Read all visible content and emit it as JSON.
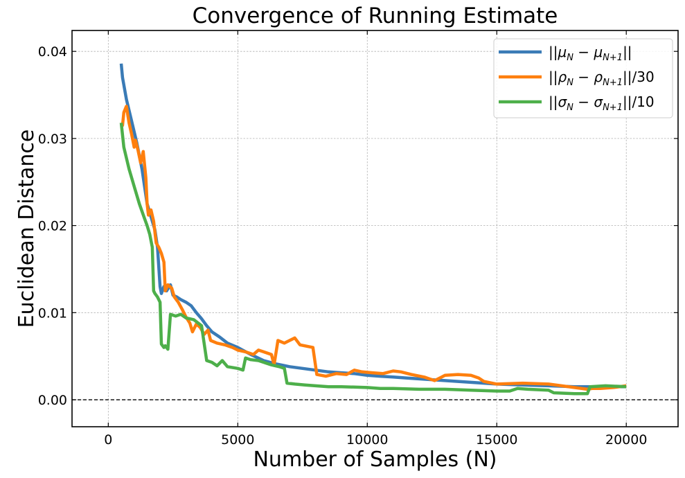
{
  "chart_data": {
    "type": "line",
    "title": "Convergence of Running Estimate",
    "xlabel": "Number of Samples (N)",
    "ylabel": "Euclidean Distance",
    "xlim": [
      -1400,
      22000
    ],
    "ylim": [
      -0.0031,
      0.0424
    ],
    "xticks": [
      0,
      5000,
      10000,
      15000,
      20000
    ],
    "xtick_labels": [
      "0",
      "5000",
      "10000",
      "15000",
      "20000"
    ],
    "yticks": [
      0.0,
      0.01,
      0.02,
      0.03,
      0.04
    ],
    "ytick_labels": [
      "0.00",
      "0.01",
      "0.02",
      "0.03",
      "0.04"
    ],
    "grid": true,
    "reference_line": {
      "y": 0.0,
      "style": "dashed",
      "color": "#000000"
    },
    "legend_position": "top-right",
    "series": [
      {
        "name": "||μN − μN+1||",
        "legend": {
          "pre": "||",
          "a": "μ",
          "asub": "N",
          "mid": " − ",
          "b": "μ",
          "bsub": "N+1",
          "post": "||"
        },
        "color": "#3a7bb6",
        "points": [
          [
            500,
            0.0386
          ],
          [
            550,
            0.037
          ],
          [
            700,
            0.0345
          ],
          [
            900,
            0.032
          ],
          [
            1100,
            0.0295
          ],
          [
            1300,
            0.0265
          ],
          [
            1500,
            0.0225
          ],
          [
            1600,
            0.0215
          ],
          [
            1700,
            0.0205
          ],
          [
            1800,
            0.0195
          ],
          [
            1900,
            0.0175
          ],
          [
            2000,
            0.013
          ],
          [
            2050,
            0.0122
          ],
          [
            2150,
            0.013
          ],
          [
            2250,
            0.0125
          ],
          [
            2400,
            0.0132
          ],
          [
            2500,
            0.012
          ],
          [
            2650,
            0.0118
          ],
          [
            2800,
            0.0115
          ],
          [
            3000,
            0.0112
          ],
          [
            3200,
            0.0108
          ],
          [
            3400,
            0.01
          ],
          [
            3600,
            0.0093
          ],
          [
            3800,
            0.0085
          ],
          [
            4000,
            0.0078
          ],
          [
            4300,
            0.0072
          ],
          [
            4600,
            0.0065
          ],
          [
            5000,
            0.006
          ],
          [
            5500,
            0.0052
          ],
          [
            6000,
            0.0045
          ],
          [
            6500,
            0.0041
          ],
          [
            7000,
            0.0038
          ],
          [
            7500,
            0.0036
          ],
          [
            8000,
            0.0034
          ],
          [
            8500,
            0.0032
          ],
          [
            9000,
            0.0031
          ],
          [
            9500,
            0.003
          ],
          [
            10000,
            0.0028
          ],
          [
            10500,
            0.0027
          ],
          [
            11000,
            0.0026
          ],
          [
            11500,
            0.0025
          ],
          [
            12000,
            0.0024
          ],
          [
            12500,
            0.0023
          ],
          [
            13000,
            0.0022
          ],
          [
            13500,
            0.0021
          ],
          [
            14000,
            0.002
          ],
          [
            14500,
            0.0019
          ],
          [
            15000,
            0.0018
          ],
          [
            16000,
            0.0017
          ],
          [
            17000,
            0.0016
          ],
          [
            18000,
            0.0015
          ],
          [
            19000,
            0.0015
          ],
          [
            20000,
            0.0015
          ]
        ]
      },
      {
        "name": "||ρN − ρN+1||/30",
        "legend": {
          "pre": "||",
          "a": "ρ",
          "asub": "N",
          "mid": " − ",
          "b": "ρ",
          "bsub": "N+1",
          "post": "||/30"
        },
        "color": "#fe7f0e",
        "points": [
          [
            500,
            0.0318
          ],
          [
            550,
            0.0315
          ],
          [
            600,
            0.033
          ],
          [
            700,
            0.0337
          ],
          [
            800,
            0.0318
          ],
          [
            900,
            0.0305
          ],
          [
            1000,
            0.029
          ],
          [
            1050,
            0.0298
          ],
          [
            1150,
            0.0286
          ],
          [
            1250,
            0.0272
          ],
          [
            1350,
            0.0285
          ],
          [
            1450,
            0.0255
          ],
          [
            1500,
            0.0225
          ],
          [
            1550,
            0.0212
          ],
          [
            1650,
            0.0218
          ],
          [
            1750,
            0.0205
          ],
          [
            1850,
            0.018
          ],
          [
            1950,
            0.0175
          ],
          [
            2050,
            0.0168
          ],
          [
            2150,
            0.0158
          ],
          [
            2200,
            0.0125
          ],
          [
            2300,
            0.0132
          ],
          [
            2450,
            0.0128
          ],
          [
            2550,
            0.0118
          ],
          [
            2700,
            0.0112
          ],
          [
            2850,
            0.0104
          ],
          [
            3000,
            0.0095
          ],
          [
            3150,
            0.0088
          ],
          [
            3250,
            0.0078
          ],
          [
            3400,
            0.0087
          ],
          [
            3550,
            0.0083
          ],
          [
            3700,
            0.0075
          ],
          [
            3850,
            0.008
          ],
          [
            3950,
            0.0068
          ],
          [
            4200,
            0.0065
          ],
          [
            4500,
            0.0063
          ],
          [
            4800,
            0.006
          ],
          [
            5000,
            0.0057
          ],
          [
            5300,
            0.0055
          ],
          [
            5600,
            0.0052
          ],
          [
            5800,
            0.0057
          ],
          [
            6000,
            0.0055
          ],
          [
            6300,
            0.0052
          ],
          [
            6400,
            0.004
          ],
          [
            6550,
            0.0068
          ],
          [
            6800,
            0.0065
          ],
          [
            7000,
            0.0068
          ],
          [
            7200,
            0.0071
          ],
          [
            7400,
            0.0063
          ],
          [
            7900,
            0.006
          ],
          [
            8050,
            0.0029
          ],
          [
            8400,
            0.0027
          ],
          [
            8800,
            0.003
          ],
          [
            9200,
            0.0029
          ],
          [
            9500,
            0.0034
          ],
          [
            9800,
            0.0032
          ],
          [
            10200,
            0.0031
          ],
          [
            10600,
            0.003
          ],
          [
            11000,
            0.0033
          ],
          [
            11300,
            0.0032
          ],
          [
            11700,
            0.0029
          ],
          [
            12200,
            0.0026
          ],
          [
            12400,
            0.0024
          ],
          [
            12600,
            0.0022
          ],
          [
            13000,
            0.0028
          ],
          [
            13500,
            0.0029
          ],
          [
            14000,
            0.0028
          ],
          [
            14300,
            0.0025
          ],
          [
            14500,
            0.0021
          ],
          [
            15000,
            0.0018
          ],
          [
            16000,
            0.0019
          ],
          [
            17000,
            0.0018
          ],
          [
            17500,
            0.0016
          ],
          [
            18000,
            0.0014
          ],
          [
            18500,
            0.0012
          ],
          [
            18700,
            0.0013
          ],
          [
            19000,
            0.0013
          ],
          [
            19500,
            0.0014
          ],
          [
            20000,
            0.0016
          ]
        ]
      },
      {
        "name": "||σN − σN+1||/10",
        "legend": {
          "pre": "||",
          "a": "σ",
          "asub": "N",
          "mid": " − ",
          "b": "σ",
          "bsub": "N+1",
          "post": "||/10"
        },
        "color": "#4daf4a",
        "points": [
          [
            500,
            0.0318
          ],
          [
            600,
            0.029
          ],
          [
            800,
            0.0265
          ],
          [
            1000,
            0.0245
          ],
          [
            1200,
            0.0225
          ],
          [
            1400,
            0.0208
          ],
          [
            1500,
            0.02
          ],
          [
            1600,
            0.019
          ],
          [
            1700,
            0.0175
          ],
          [
            1750,
            0.0125
          ],
          [
            1800,
            0.0122
          ],
          [
            1900,
            0.0118
          ],
          [
            2000,
            0.0112
          ],
          [
            2050,
            0.0064
          ],
          [
            2150,
            0.006
          ],
          [
            2200,
            0.0062
          ],
          [
            2300,
            0.0058
          ],
          [
            2400,
            0.0098
          ],
          [
            2600,
            0.0096
          ],
          [
            2800,
            0.0098
          ],
          [
            3000,
            0.0094
          ],
          [
            3300,
            0.0092
          ],
          [
            3600,
            0.0085
          ],
          [
            3800,
            0.0045
          ],
          [
            4000,
            0.0043
          ],
          [
            4200,
            0.0039
          ],
          [
            4400,
            0.0045
          ],
          [
            4600,
            0.0038
          ],
          [
            5000,
            0.0036
          ],
          [
            5200,
            0.0034
          ],
          [
            5300,
            0.0048
          ],
          [
            5500,
            0.0046
          ],
          [
            5800,
            0.0045
          ],
          [
            6000,
            0.0043
          ],
          [
            6300,
            0.004
          ],
          [
            6600,
            0.0038
          ],
          [
            6800,
            0.0036
          ],
          [
            6900,
            0.0019
          ],
          [
            7200,
            0.0018
          ],
          [
            7600,
            0.0017
          ],
          [
            8000,
            0.0016
          ],
          [
            8500,
            0.0015
          ],
          [
            9000,
            0.0015
          ],
          [
            10000,
            0.0014
          ],
          [
            10500,
            0.0013
          ],
          [
            11000,
            0.0013
          ],
          [
            12000,
            0.0012
          ],
          [
            13000,
            0.0012
          ],
          [
            14000,
            0.0011
          ],
          [
            15000,
            0.001
          ],
          [
            15500,
            0.001
          ],
          [
            15800,
            0.0013
          ],
          [
            16200,
            0.0012
          ],
          [
            17000,
            0.0011
          ],
          [
            17200,
            0.0008
          ],
          [
            18000,
            0.0007
          ],
          [
            18500,
            0.0007
          ],
          [
            18600,
            0.0015
          ],
          [
            19200,
            0.0016
          ],
          [
            20000,
            0.0015
          ]
        ]
      }
    ]
  }
}
